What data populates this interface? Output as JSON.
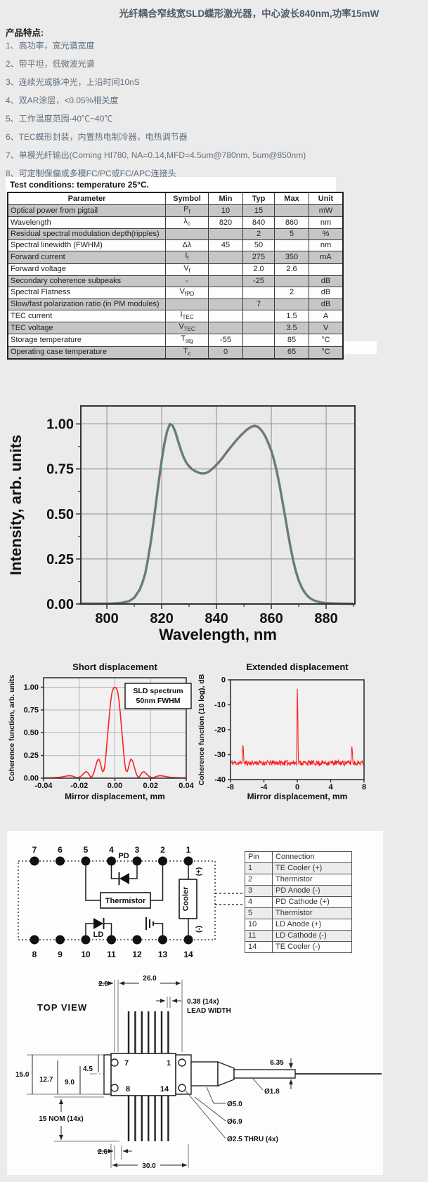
{
  "page_title": "光纤耦合窄线宽SLD蝶形激光器，中心波长840nm,功率15mW",
  "features": {
    "heading": "产品特点:",
    "items": [
      "1、高功率，宽光谱宽度",
      "2、带平坦，低微波光谱",
      "3、连续光或脉冲光，上沿时间10nS",
      "4、双AR涂层，<0.05%相关度",
      "5、工作温度范围-40℃~40℃",
      "6、TEC蝶形封装，内置热电制冷器，电热调节器",
      "7、单模光纤输出(Corning HI780, NA=0.14,MFD=4.5um@780nm, 5um@850nm)",
      "8、可定制保偏或多模FC/PC或FC/APC连接头"
    ]
  },
  "spec_table": {
    "caption": "Test conditions: temperature 25°C.",
    "columns": [
      "Parameter",
      "Symbol",
      "Min",
      "Typ",
      "Max",
      "Unit"
    ],
    "rows": [
      {
        "param": "Optical power from pigtail",
        "sym": "P",
        "sub": "f",
        "min": "10",
        "typ": "15",
        "max": "",
        "unit": "mW"
      },
      {
        "param": "Wavelength",
        "sym": "λ",
        "sub": "c",
        "min": "820",
        "typ": "840",
        "max": "860",
        "unit": "nm"
      },
      {
        "param": "Residual spectral modulation depth(ripples)",
        "sym": "",
        "sub": "",
        "min": "",
        "typ": "2",
        "max": "5",
        "unit": "%"
      },
      {
        "param": "Spectral linewidth (FWHM)",
        "sym": "Δλ",
        "sub": "",
        "min": "45",
        "typ": "50",
        "max": "",
        "unit": "nm"
      },
      {
        "param": "Forward current",
        "sym": "I",
        "sub": "f",
        "min": "",
        "typ": "275",
        "max": "350",
        "unit": "mA"
      },
      {
        "param": "Forward voltage",
        "sym": "V",
        "sub": "f",
        "min": "",
        "typ": "2.0",
        "max": "2.6",
        "unit": ""
      },
      {
        "param": "Secondary coherence subpeaks",
        "sym": "-",
        "sub": "",
        "min": "",
        "typ": "-25",
        "max": "",
        "unit": "dB"
      },
      {
        "param": "Spectral Flatness",
        "sym": "V",
        "sub": "fPD",
        "min": "",
        "typ": "",
        "max": "2",
        "unit": "dB"
      },
      {
        "param": "Slow/fast polarization ratio (in PM modules)",
        "sym": "",
        "sub": "",
        "min": "",
        "typ": "7",
        "max": "",
        "unit": "dB"
      },
      {
        "param": "TEC current",
        "sym": "I",
        "sub": "TEC",
        "min": "",
        "typ": "",
        "max": "1.5",
        "unit": "A"
      },
      {
        "param": "TEC voltage",
        "sym": "V",
        "sub": "TEC",
        "min": "",
        "typ": "",
        "max": "3.5",
        "unit": "V"
      },
      {
        "param": "Storage temperature",
        "sym": "T",
        "sub": "stg",
        "min": "-55",
        "typ": "",
        "max": "85",
        "unit": "°C"
      },
      {
        "param": "Operating case temperature",
        "sym": "T",
        "sub": "c",
        "min": "0",
        "typ": "",
        "max": "65",
        "unit": "°C"
      }
    ]
  },
  "chart_data": [
    {
      "id": "spectrum",
      "type": "line",
      "title": "",
      "xlabel": "Wavelength, nm",
      "ylabel": "Intensity, arb. units",
      "xlim": [
        790.5,
        890.5
      ],
      "ylim": [
        0,
        1.1
      ],
      "xticks": [
        800,
        820,
        840,
        860,
        880
      ],
      "xtick_labels": [
        "800",
        "820",
        "840",
        "860",
        "880"
      ],
      "minor_xticks": [
        810,
        830,
        850,
        870,
        890
      ],
      "yticks": [
        0,
        0.25,
        0.5,
        0.75,
        1.0
      ],
      "ytick_labels": [
        "0.00",
        "0.25",
        "0.50",
        "0.75",
        "1.00"
      ],
      "minor_yticks": [
        0.125,
        0.375,
        0.625,
        0.875
      ],
      "grid": true,
      "series": [
        {
          "name": "SLD spectrum",
          "color": "#3f9552",
          "halo": "#b05fb0",
          "width": 2.1,
          "points": [
            [
              790,
              0.002
            ],
            [
              798,
              0.002
            ],
            [
              802,
              0.003
            ],
            [
              805,
              0.006
            ],
            [
              808,
              0.015
            ],
            [
              810,
              0.035
            ],
            [
              812,
              0.08
            ],
            [
              813,
              0.12
            ],
            [
              814,
              0.17
            ],
            [
              815,
              0.25
            ],
            [
              816,
              0.34
            ],
            [
              817,
              0.45
            ],
            [
              818,
              0.57
            ],
            [
              819,
              0.69
            ],
            [
              820,
              0.8
            ],
            [
              821,
              0.89
            ],
            [
              822,
              0.96
            ],
            [
              823,
              1.0
            ],
            [
              824,
              0.99
            ],
            [
              825,
              0.955
            ],
            [
              826,
              0.905
            ],
            [
              827,
              0.855
            ],
            [
              828,
              0.815
            ],
            [
              829,
              0.785
            ],
            [
              830,
              0.765
            ],
            [
              831,
              0.75
            ],
            [
              832,
              0.74
            ],
            [
              833,
              0.732
            ],
            [
              834,
              0.727
            ],
            [
              835,
              0.725
            ],
            [
              836,
              0.727
            ],
            [
              837,
              0.733
            ],
            [
              838,
              0.745
            ],
            [
              839,
              0.758
            ],
            [
              840,
              0.773
            ],
            [
              841,
              0.79
            ],
            [
              842,
              0.808
            ],
            [
              843,
              0.828
            ],
            [
              844,
              0.848
            ],
            [
              845,
              0.868
            ],
            [
              846,
              0.886
            ],
            [
              847,
              0.905
            ],
            [
              848,
              0.922
            ],
            [
              849,
              0.938
            ],
            [
              850,
              0.953
            ],
            [
              851,
              0.967
            ],
            [
              852,
              0.978
            ],
            [
              853,
              0.986
            ],
            [
              854,
              0.99
            ],
            [
              855,
              0.985
            ],
            [
              856,
              0.972
            ],
            [
              857,
              0.952
            ],
            [
              858,
              0.925
            ],
            [
              859,
              0.89
            ],
            [
              860,
              0.85
            ],
            [
              861,
              0.8
            ],
            [
              862,
              0.735
            ],
            [
              863,
              0.66
            ],
            [
              864,
              0.575
            ],
            [
              865,
              0.49
            ],
            [
              866,
              0.4
            ],
            [
              867,
              0.315
            ],
            [
              868,
              0.24
            ],
            [
              869,
              0.18
            ],
            [
              870,
              0.13
            ],
            [
              871,
              0.095
            ],
            [
              872,
              0.068
            ],
            [
              873,
              0.048
            ],
            [
              874,
              0.034
            ],
            [
              875,
              0.024
            ],
            [
              876,
              0.017
            ],
            [
              878,
              0.009
            ],
            [
              880,
              0.005
            ],
            [
              883,
              0.003
            ],
            [
              886,
              0.002
            ],
            [
              890,
              0.001
            ]
          ]
        }
      ]
    },
    {
      "id": "short",
      "type": "line",
      "title": "Short displacement",
      "xlabel": "Mirror displacement, mm",
      "ylabel": "Coherence function, arb. units",
      "xlim": [
        -0.04,
        0.04
      ],
      "ylim": [
        0,
        1.104
      ],
      "xticks": [
        -0.04,
        -0.02,
        0,
        0.02,
        0.04
      ],
      "xtick_labels": [
        "-0.04",
        "-0.02",
        "0.00",
        "0.02",
        "0.04"
      ],
      "yticks": [
        0,
        0.25,
        0.5,
        0.75,
        1.0
      ],
      "ytick_labels": [
        "0.00",
        "0.25",
        "0.50",
        "0.75",
        "1.00"
      ],
      "grid": true,
      "legend": {
        "lines": [
          "SLD spectrum",
          "50nm FWHM"
        ]
      },
      "series": [
        {
          "name": "coherence",
          "color": "#fb2222",
          "width": 1.6,
          "points": [
            [
              -0.04,
              0.004
            ],
            [
              -0.037,
              0.004
            ],
            [
              -0.034,
              0.006
            ],
            [
              -0.031,
              0.01
            ],
            [
              -0.029,
              0.016
            ],
            [
              -0.027,
              0.024
            ],
            [
              -0.0255,
              0.028
            ],
            [
              -0.024,
              0.024
            ],
            [
              -0.0225,
              0.013
            ],
            [
              -0.0215,
              0.005
            ],
            [
              -0.0205,
              0.008
            ],
            [
              -0.019,
              0.022
            ],
            [
              -0.0175,
              0.05
            ],
            [
              -0.0163,
              0.072
            ],
            [
              -0.0152,
              0.062
            ],
            [
              -0.0143,
              0.033
            ],
            [
              -0.0135,
              0.01
            ],
            [
              -0.0128,
              0.015
            ],
            [
              -0.0118,
              0.06
            ],
            [
              -0.0108,
              0.13
            ],
            [
              -0.0098,
              0.195
            ],
            [
              -0.009,
              0.21
            ],
            [
              -0.0082,
              0.17
            ],
            [
              -0.0074,
              0.1
            ],
            [
              -0.0068,
              0.07
            ],
            [
              -0.0062,
              0.085
            ],
            [
              -0.0056,
              0.15
            ],
            [
              -0.005,
              0.26
            ],
            [
              -0.0044,
              0.4
            ],
            [
              -0.0037,
              0.56
            ],
            [
              -0.003,
              0.72
            ],
            [
              -0.0023,
              0.855
            ],
            [
              -0.0016,
              0.945
            ],
            [
              -0.0008,
              0.99
            ],
            [
              0,
              1.0
            ],
            [
              0.0008,
              0.99
            ],
            [
              0.0016,
              0.945
            ],
            [
              0.0023,
              0.855
            ],
            [
              0.003,
              0.72
            ],
            [
              0.0037,
              0.56
            ],
            [
              0.0044,
              0.4
            ],
            [
              0.005,
              0.26
            ],
            [
              0.0056,
              0.15
            ],
            [
              0.0062,
              0.085
            ],
            [
              0.0068,
              0.07
            ],
            [
              0.0074,
              0.1
            ],
            [
              0.0082,
              0.17
            ],
            [
              0.009,
              0.21
            ],
            [
              0.0098,
              0.195
            ],
            [
              0.0108,
              0.13
            ],
            [
              0.0118,
              0.06
            ],
            [
              0.0128,
              0.015
            ],
            [
              0.0135,
              0.01
            ],
            [
              0.0143,
              0.033
            ],
            [
              0.0152,
              0.062
            ],
            [
              0.0163,
              0.072
            ],
            [
              0.0175,
              0.05
            ],
            [
              0.019,
              0.022
            ],
            [
              0.0205,
              0.008
            ],
            [
              0.0215,
              0.005
            ],
            [
              0.0225,
              0.013
            ],
            [
              0.024,
              0.024
            ],
            [
              0.0255,
              0.028
            ],
            [
              0.027,
              0.024
            ],
            [
              0.029,
              0.016
            ],
            [
              0.031,
              0.01
            ],
            [
              0.034,
              0.006
            ],
            [
              0.037,
              0.004
            ],
            [
              0.04,
              0.004
            ]
          ]
        }
      ]
    },
    {
      "id": "extended",
      "type": "line",
      "title": "Extended displacement",
      "xlabel": "Mirror displacement, mm",
      "ylabel": "Coherence function (10 log), dB",
      "xlim": [
        -8,
        8
      ],
      "ylim": [
        -40,
        0
      ],
      "xticks": [
        -8,
        -4,
        0,
        4,
        8
      ],
      "xtick_labels": [
        "-8",
        "-4",
        "0",
        "4",
        "8"
      ],
      "yticks": [
        0,
        -10,
        -20,
        -30,
        -40
      ],
      "ytick_labels": [
        "0",
        "-10",
        "-20",
        "-30",
        "-40"
      ],
      "grid": false,
      "noise": {
        "baseline": -33.3,
        "amplitude": 1.05,
        "step": 0.045,
        "seed": 11,
        "color": "#fb2020",
        "width": 1.1
      },
      "spikes": [
        {
          "x": -6.5,
          "y": -25.2,
          "w": 0.12
        },
        {
          "x": 0.02,
          "y": -0.3,
          "w": 0.1
        },
        {
          "x": 6.55,
          "y": -25.8,
          "w": 0.12
        }
      ]
    }
  ],
  "pin_diagram": {
    "top_pins": [
      "7",
      "6",
      "5",
      "4",
      "3",
      "2",
      "1"
    ],
    "bottom_pins": [
      "8",
      "9",
      "10",
      "11",
      "12",
      "13",
      "14"
    ],
    "pd_label": "PD",
    "ld_label": "LD",
    "thermistor_label": "Thermistor",
    "cooler_label": "Cooler",
    "cooler_plus": "(+)",
    "cooler_minus": "(-)"
  },
  "pin_table": {
    "columns": [
      "Pin",
      "Connection"
    ],
    "rows": [
      [
        "1",
        "TE Cooler (+)"
      ],
      [
        "2",
        "Thermistor"
      ],
      [
        "3",
        "PD Anode (-)"
      ],
      [
        "4",
        "PD Cathode (+)"
      ],
      [
        "5",
        "Thermistor"
      ],
      [
        "10",
        "LD Anode (+)"
      ],
      [
        "11",
        "LD Cathode (-)"
      ],
      [
        "14",
        "TE Cooler (-)"
      ]
    ]
  },
  "mechanical": {
    "view_label": "TOP VIEW",
    "dim_2_0": "2.0",
    "dim_26_0": "26.0",
    "lead_width_1": "0.38 (14x)",
    "lead_width_2": "LEAD WIDTH",
    "dim_15_0": "15.0",
    "dim_12_7": "12.7",
    "dim_9_0": "9.0",
    "dim_4_5": "4.5",
    "dim_6_35": "6.35",
    "dia_1_8": "Ø1.8",
    "dia_5_0": "Ø5.0",
    "dia_6_9": "Ø6.9",
    "dia_2_5": "Ø2.5 THRU (4x)",
    "nom_15": "15 NOM (14x)",
    "dim_2_6": "2.6",
    "dim_30_0": "30.0",
    "pin7": "7",
    "pin1": "1",
    "pin8": "8",
    "pin14": "14"
  },
  "colors": {
    "spectrum_green": "#3f9552",
    "coherence_red": "#fb2222",
    "underlay_magenta": "#b05fb0",
    "page_background": "#ebebeb"
  }
}
